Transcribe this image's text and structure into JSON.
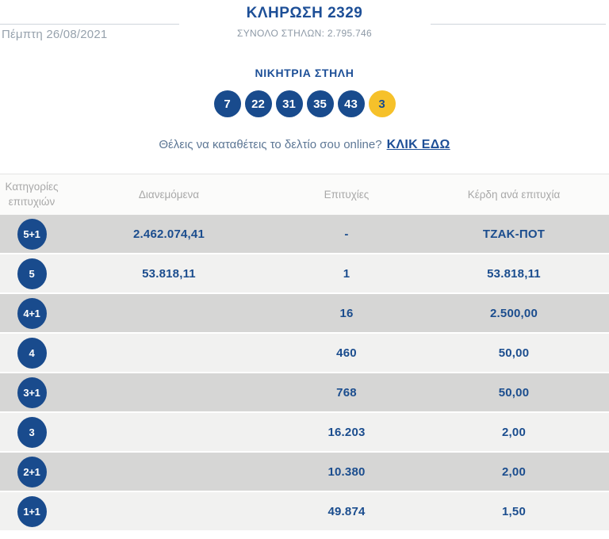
{
  "header": {
    "title": "ΚΛΗΡΩΣΗ 2329",
    "subtitle": "ΣΥΝΟΛΟ ΣΤΗΛΩΝ: 2.795.746",
    "date": "Πέμπτη 26/08/2021"
  },
  "winning": {
    "heading": "ΝΙΚΗΤΡΙΑ ΣΤΗΛΗ",
    "numbers": [
      "7",
      "22",
      "31",
      "35",
      "43"
    ],
    "joker": "3"
  },
  "cta": {
    "question": "Θέλεις να καταθέτεις το δελτίο σου online?",
    "link": "ΚΛΙΚ ΕΔΩ"
  },
  "table": {
    "headers": [
      "Κατηγορίες επιτυχιών",
      "Διανεμόμενα",
      "Επιτυχίες",
      "Κέρδη ανά επιτυχία"
    ],
    "rows": [
      {
        "category": "5+1",
        "distributed": "2.462.074,41",
        "winners": "-",
        "prize": "ΤΖΑΚ-ΠΟΤ"
      },
      {
        "category": "5",
        "distributed": "53.818,11",
        "winners": "1",
        "prize": "53.818,11"
      },
      {
        "category": "4+1",
        "distributed": "",
        "winners": "16",
        "prize": "2.500,00"
      },
      {
        "category": "4",
        "distributed": "",
        "winners": "460",
        "prize": "50,00"
      },
      {
        "category": "3+1",
        "distributed": "",
        "winners": "768",
        "prize": "50,00"
      },
      {
        "category": "3",
        "distributed": "",
        "winners": "16.203",
        "prize": "2,00"
      },
      {
        "category": "2+1",
        "distributed": "",
        "winners": "10.380",
        "prize": "2,00"
      },
      {
        "category": "1+1",
        "distributed": "",
        "winners": "49.874",
        "prize": "1,50"
      }
    ]
  },
  "colors": {
    "brand_blue": "#194b8d",
    "title_blue": "#1d4f97",
    "joker_yellow": "#f6c12a",
    "row_light": "#f1f1f0",
    "row_dark": "#d6d6d5",
    "header_gray_text": "#a8a8a8",
    "muted_blue_gray": "#5d7795"
  }
}
